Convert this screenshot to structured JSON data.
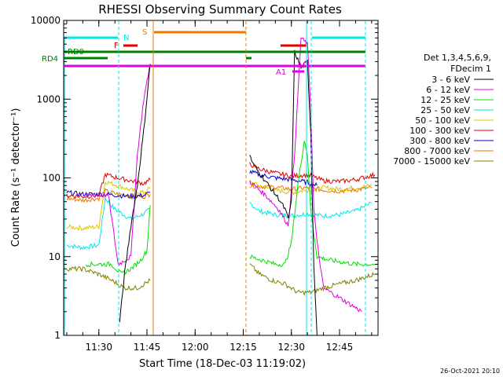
{
  "chart_data": {
    "type": "line",
    "title": "RHESSI Observing Summary Count Rates",
    "xlabel": "Start Time (18-Dec-03 11:19:02)",
    "ylabel": "Count Rate (s⁻¹ detector⁻¹)",
    "yscale": "log",
    "ylim": [
      1,
      10000
    ],
    "xlim": [
      "11:19:02",
      "12:57:00"
    ],
    "grid": false,
    "xticks": [
      "11:30",
      "11:45",
      "12:00",
      "12:15",
      "12:30",
      "12:45"
    ],
    "yticks": [
      "1",
      "10",
      "100",
      "1000",
      "10000"
    ],
    "legend": {
      "placement": "right",
      "header": [
        "Det 1,3,4,5,6,9,",
        "FDecim 1"
      ],
      "entries": [
        {
          "label": "3 - 6 keV",
          "color": "#000000"
        },
        {
          "label": "6 - 12 keV",
          "color": "#e000e0"
        },
        {
          "label": "12 - 25 keV",
          "color": "#00e000"
        },
        {
          "label": "25 - 50 keV",
          "color": "#00e8e8"
        },
        {
          "label": "50 - 100 keV",
          "color": "#d8c800"
        },
        {
          "label": "100 - 300 keV",
          "color": "#e00000"
        },
        {
          "label": "300 - 800 keV",
          "color": "#0000c8"
        },
        {
          "label": "800 - 7000 keV",
          "color": "#f07800"
        },
        {
          "label": "7000 - 15000 keV",
          "color": "#808000"
        }
      ]
    },
    "state_flags": [
      {
        "label": "N",
        "color": "#00e8e8"
      },
      {
        "label": "F",
        "color": "#e00000"
      },
      {
        "label": "S",
        "color": "#f07800"
      },
      {
        "label": "RD0",
        "color": "#008000"
      },
      {
        "label": "RD4",
        "color": "#008000"
      },
      {
        "label": "A1",
        "color": "#e000e0"
      },
      {
        "label": "A0",
        "color": "#e000e0"
      }
    ],
    "series": [
      {
        "name": "3 - 6 keV",
        "color": "#000000",
        "x": [
          "11:36:30",
          "11:38:00",
          "11:40:00",
          "11:42:00",
          "11:44:00",
          "11:46:00",
          "12:17:00",
          "12:18:00",
          "12:22:00",
          "12:24:00",
          "12:26:00",
          "12:28:00",
          "12:29:00",
          "12:30:00",
          "12:31:00",
          "12:33:00",
          "12:35:00",
          "12:36:00",
          "12:37:00",
          "12:38:00"
        ],
        "y": [
          1.5,
          6,
          25,
          80,
          400,
          2800,
          200,
          150,
          90,
          70,
          55,
          40,
          30,
          50,
          4000,
          2500,
          3000,
          400,
          8,
          1
        ]
      },
      {
        "name": "6 - 12 keV",
        "color": "#e000e0",
        "x": [
          "11:26:00",
          "11:30:00",
          "11:33:00",
          "11:36:00",
          "11:40:00",
          "11:42:00",
          "11:44:00",
          "11:46:00",
          "12:17:00",
          "12:22:00",
          "12:26:00",
          "12:29:00",
          "12:31:00",
          "12:33:00",
          "12:35:00",
          "12:36:00",
          "12:37:00",
          "12:38:00",
          "12:40:00",
          "12:45:00",
          "12:52:00"
        ],
        "y": [
          60,
          60,
          60,
          8,
          10,
          200,
          1000,
          2800,
          90,
          60,
          40,
          25,
          200,
          6000,
          5000,
          800,
          40,
          15,
          4,
          3,
          2
        ]
      },
      {
        "name": "12 - 25 keV",
        "color": "#00e000",
        "x": [
          "11:26:00",
          "11:30:00",
          "11:34:00",
          "11:37:00",
          "11:40:00",
          "11:43:00",
          "11:45:00",
          "11:46:00",
          "12:17:00",
          "12:21:00",
          "12:25:00",
          "12:28:00",
          "12:30:00",
          "12:32:00",
          "12:34:00",
          "12:35:00",
          "12:36:00",
          "12:38:00",
          "12:42:00",
          "12:50:00",
          "12:56:00"
        ],
        "y": [
          8,
          8,
          8,
          6,
          7,
          9,
          12,
          45,
          10,
          9,
          8,
          8,
          15,
          80,
          300,
          200,
          40,
          10,
          9,
          8,
          8
        ]
      },
      {
        "name": "25 - 50 keV",
        "color": "#00e8e8",
        "x": [
          "11:20:00",
          "11:25:00",
          "11:30:00",
          "11:32:00",
          "11:35:00",
          "11:40:00",
          "11:44:00",
          "11:46:00",
          "12:17:00",
          "12:20:00",
          "12:25:00",
          "12:30:00",
          "12:35:00",
          "12:40:00",
          "12:45:00",
          "12:50:00",
          "12:55:00"
        ],
        "y": [
          14,
          13,
          14,
          55,
          40,
          30,
          35,
          40,
          48,
          38,
          34,
          33,
          35,
          33,
          34,
          38,
          48
        ]
      },
      {
        "name": "50 - 100 keV",
        "color": "#d8c800",
        "x": [
          "11:20:00",
          "11:25:00",
          "11:30:00",
          "11:32:00",
          "11:36:00",
          "11:40:00",
          "11:44:00",
          "11:46:00",
          "12:17:00",
          "12:20:00",
          "12:25:00",
          "12:30:00",
          "12:35:00",
          "12:40:00",
          "12:45:00",
          "12:50:00",
          "12:55:00"
        ],
        "y": [
          24,
          23,
          24,
          90,
          80,
          70,
          65,
          75,
          90,
          80,
          70,
          65,
          70,
          75,
          72,
          75,
          80
        ]
      },
      {
        "name": "100 - 300 keV",
        "color": "#e00000",
        "x": [
          "11:20:00",
          "11:25:00",
          "11:30:00",
          "11:32:00",
          "11:36:00",
          "11:40:00",
          "11:44:00",
          "11:46:00",
          "12:17:00",
          "12:20:00",
          "12:25:00",
          "12:30:00",
          "12:35:00",
          "12:40:00",
          "12:45:00",
          "12:50:00",
          "12:56:00"
        ],
        "y": [
          60,
          58,
          60,
          110,
          100,
          92,
          85,
          95,
          150,
          130,
          115,
          105,
          110,
          92,
          90,
          95,
          110
        ]
      },
      {
        "name": "300 - 800 keV",
        "color": "#0000c8",
        "x": [
          "11:20:00",
          "11:25:00",
          "11:30:00",
          "11:32:00",
          "11:36:00",
          "11:40:00",
          "11:44:00",
          "11:46:00",
          "12:17:00",
          "12:20:00",
          "12:25:00",
          "12:30:00",
          "12:35:00",
          "12:38:00"
        ],
        "y": [
          65,
          62,
          62,
          62,
          60,
          58,
          60,
          65,
          120,
          110,
          100,
          95,
          88,
          80
        ]
      },
      {
        "name": "800 - 7000 keV",
        "color": "#f07800",
        "x": [
          "11:20:00",
          "11:25:00",
          "11:30:00",
          "11:32:00",
          "11:36:00",
          "11:40:00",
          "11:44:00",
          "11:46:00",
          "12:17:00",
          "12:20:00",
          "12:25:00",
          "12:30:00",
          "12:35:00",
          "12:40:00",
          "12:45:00",
          "12:50:00",
          "12:55:00"
        ],
        "y": [
          55,
          52,
          55,
          68,
          62,
          60,
          58,
          62,
          80,
          78,
          76,
          72,
          75,
          70,
          68,
          70,
          75
        ]
      },
      {
        "name": "7000 - 15000 keV",
        "color": "#808000",
        "x": [
          "11:20:00",
          "11:25:00",
          "11:30:00",
          "11:34:00",
          "11:38:00",
          "11:42:00",
          "11:46:00",
          "12:17:00",
          "12:20:00",
          "12:24:00",
          "12:28:00",
          "12:32:00",
          "12:36:00",
          "12:40:00",
          "12:45:00",
          "12:50:00",
          "12:56:00"
        ],
        "y": [
          7,
          7,
          6,
          5,
          4,
          4,
          5,
          8,
          6,
          5,
          4.5,
          3.5,
          3.5,
          4,
          4.5,
          5,
          6
        ]
      }
    ]
  },
  "footer": {
    "timestamp": "26-Oct-2021 20:10"
  }
}
